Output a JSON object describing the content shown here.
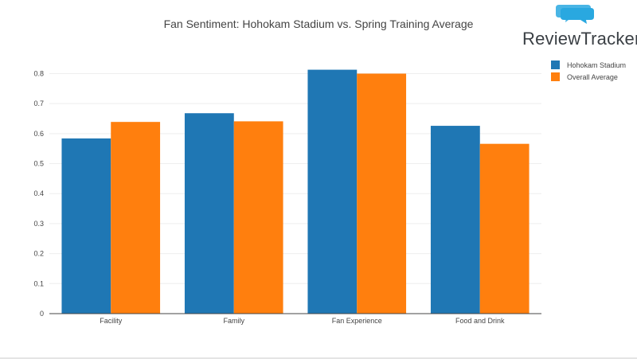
{
  "chart_title": "Fan Sentiment: Hohokam Stadium vs. Spring Training Average",
  "logo": {
    "text": "ReviewTrackers",
    "accent_color": "#29a8e0"
  },
  "colors": {
    "series_a": "#1f77b4",
    "series_b": "#ff7f0e",
    "grid": "#eeeeee",
    "axis": "#444444",
    "text": "#444444"
  },
  "chart_data": {
    "type": "bar",
    "title": "Fan Sentiment: Hohokam Stadium vs. Spring Training Average",
    "categories": [
      "Facility",
      "Family",
      "Fan Experience",
      "Food and Drink"
    ],
    "series": [
      {
        "name": "Hohokam Stadium",
        "color": "#1f77b4",
        "values": [
          0.584,
          0.668,
          0.813,
          0.626
        ]
      },
      {
        "name": "Overall Average",
        "color": "#ff7f0e",
        "values": [
          0.639,
          0.641,
          0.8,
          0.566
        ]
      }
    ],
    "yticks": [
      "0",
      "0.1",
      "0.2",
      "0.3",
      "0.4",
      "0.5",
      "0.6",
      "0.7",
      "0.8"
    ],
    "ylim": [
      0,
      0.857
    ],
    "xlabel": "",
    "ylabel": "",
    "grid": true,
    "legend": "top-right"
  }
}
